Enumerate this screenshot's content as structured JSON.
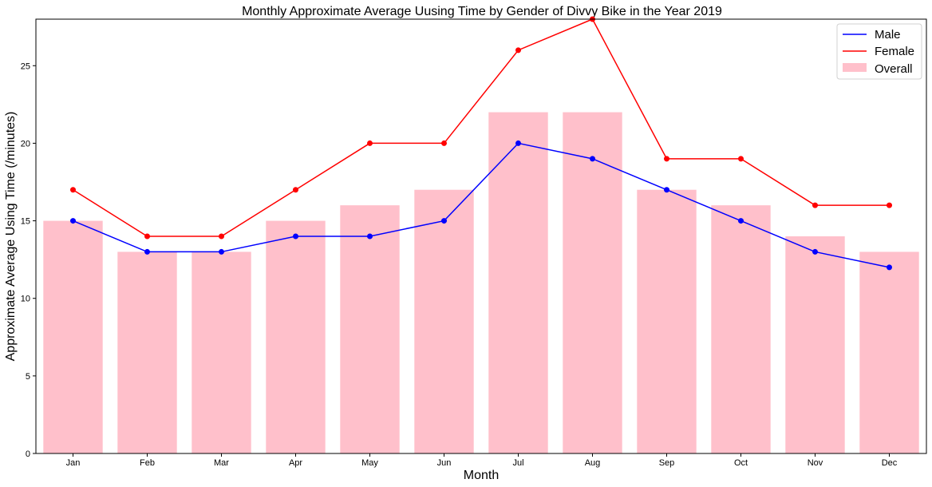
{
  "chart_data": {
    "type": "bar",
    "title": "Monthly Approximate Average Uusing Time by Gender of Divvy Bike in the Year 2019",
    "xlabel": "Month",
    "ylabel": "Approximate Average Using Time (/minutes)",
    "categories": [
      "Jan",
      "Feb",
      "Mar",
      "Apr",
      "May",
      "Jun",
      "Jul",
      "Aug",
      "Sep",
      "Oct",
      "Nov",
      "Dec"
    ],
    "ylim": [
      0,
      28
    ],
    "yticks": [
      0,
      5,
      10,
      15,
      20,
      25
    ],
    "grid": false,
    "legend_position": "top-right",
    "bars": {
      "name": "Overall",
      "color": "#ffc0cb",
      "values": [
        15,
        13,
        13,
        15,
        16,
        17,
        22,
        22,
        17,
        16,
        14,
        13
      ]
    },
    "series": [
      {
        "name": "Male",
        "type": "line",
        "color": "#0000ff",
        "values": [
          15,
          13,
          13,
          14,
          14,
          15,
          20,
          19,
          17,
          15,
          13,
          12
        ]
      },
      {
        "name": "Female",
        "type": "line",
        "color": "#ff0000",
        "values": [
          17,
          14,
          14,
          17,
          20,
          20,
          26,
          28,
          19,
          19,
          16,
          16
        ]
      }
    ]
  }
}
